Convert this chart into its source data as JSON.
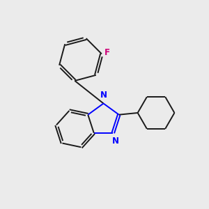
{
  "background_color": "#ebebeb",
  "bond_color": "#1a1a1a",
  "N_color": "#0000ff",
  "F_color": "#cc0077",
  "line_width": 1.4,
  "figsize": [
    3.0,
    3.0
  ],
  "dpi": 100,
  "xlim": [
    0,
    10
  ],
  "ylim": [
    0,
    10
  ]
}
